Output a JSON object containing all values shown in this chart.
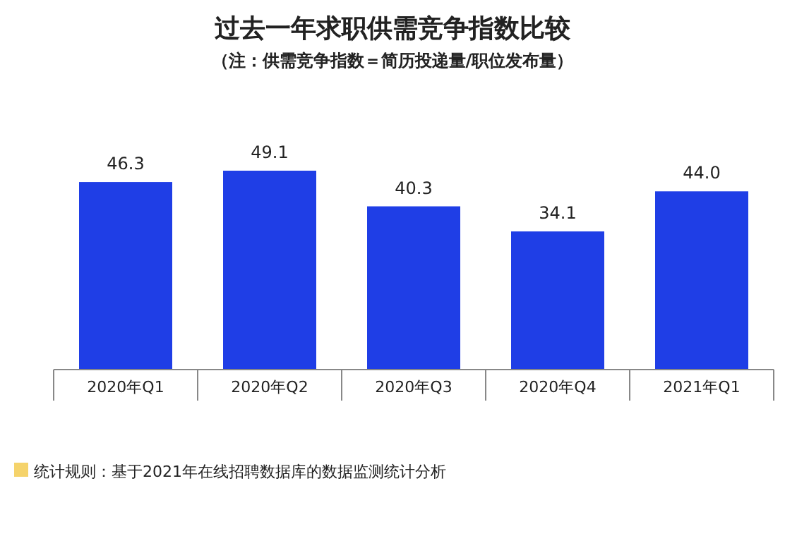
{
  "chart_data": {
    "type": "bar",
    "title": "过去一年求职供需竞争指数比较",
    "subtitle": "（注：供需竞争指数＝简历投递量/职位发布量）",
    "categories": [
      "2020年Q1",
      "2020年Q2",
      "2020年Q3",
      "2020年Q4",
      "2021年Q1"
    ],
    "values": [
      46.3,
      49.1,
      40.3,
      34.1,
      44.0
    ],
    "color": "#1f3ee6",
    "value_labels": [
      "46.3",
      "49.1",
      "40.3",
      "34.1",
      "44.0"
    ],
    "annotations": [
      "统计规则：基于2021年在线招聘数据库的数据监测统计分析"
    ]
  }
}
